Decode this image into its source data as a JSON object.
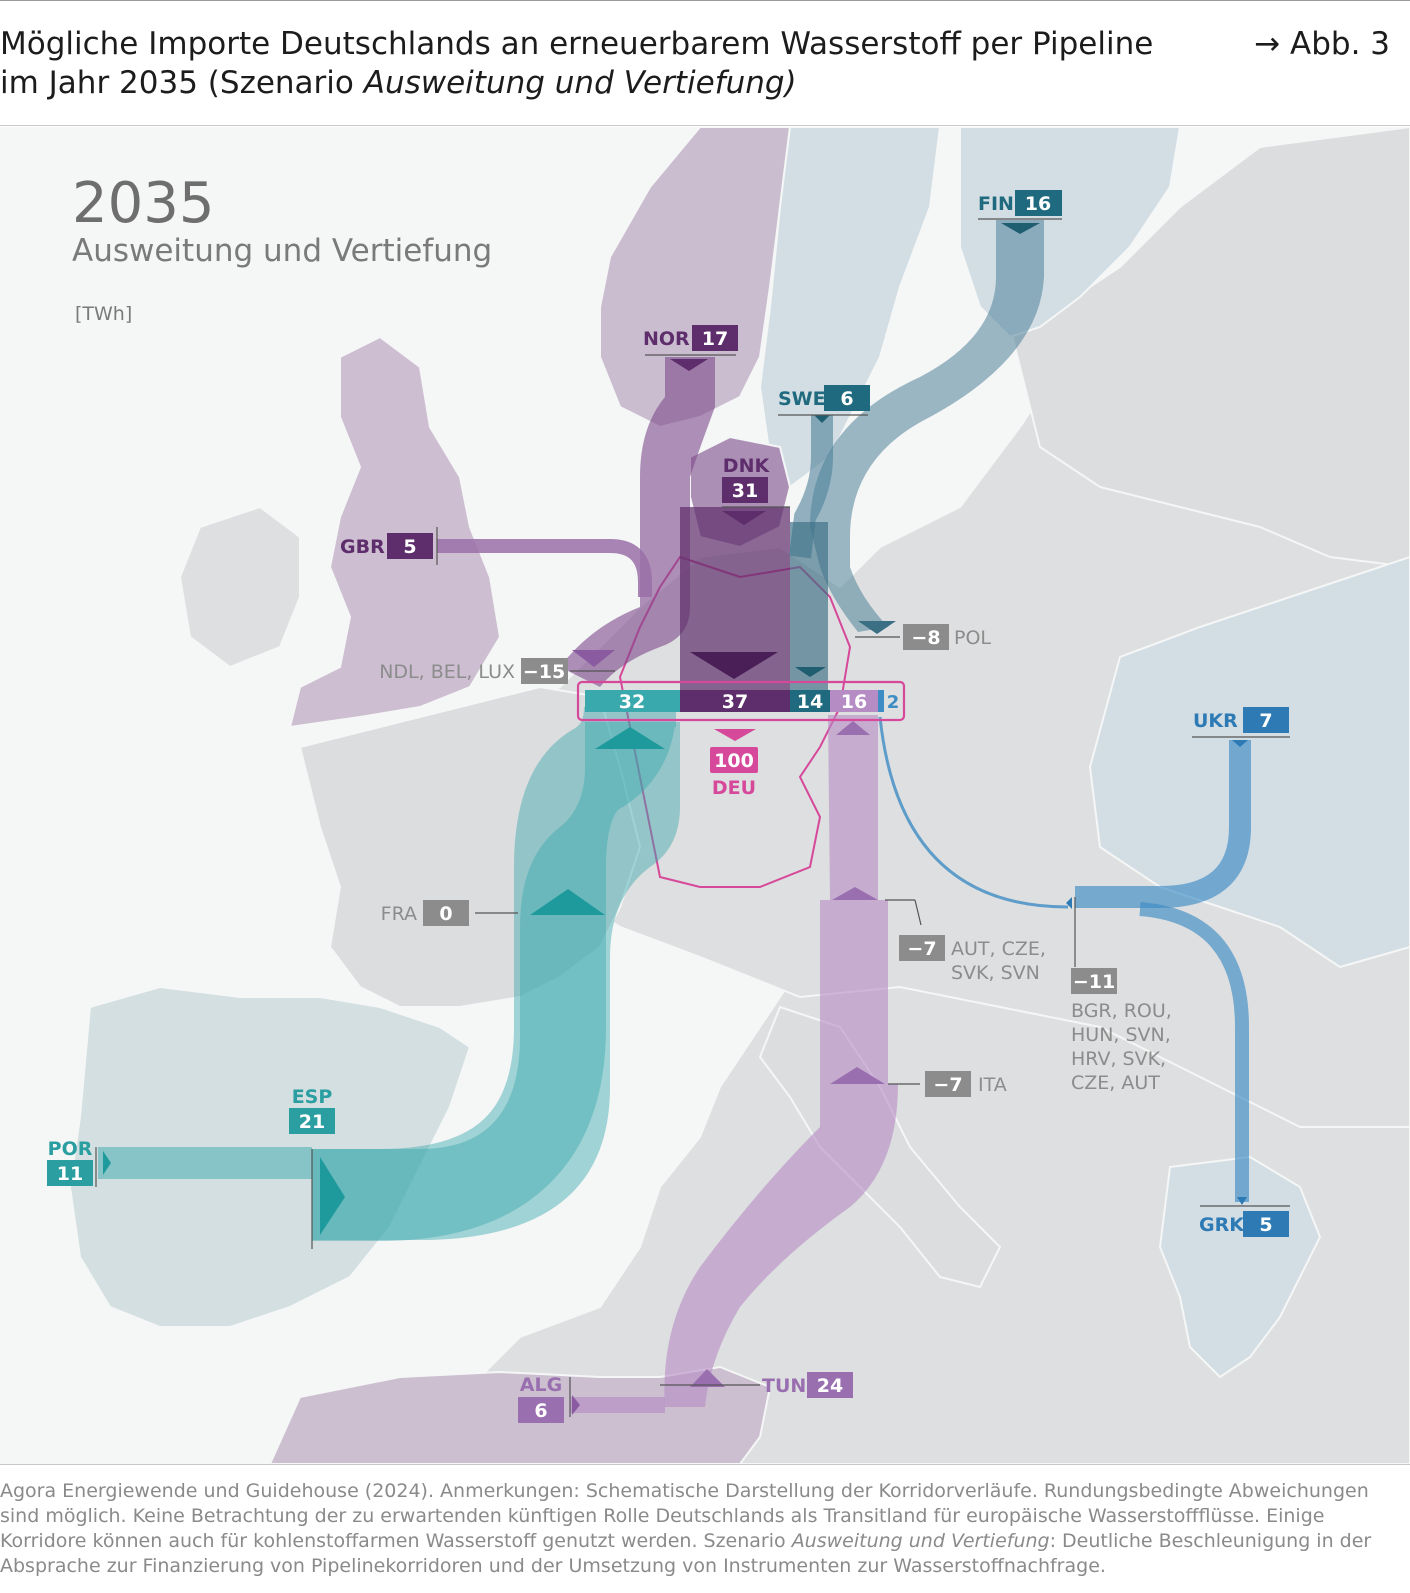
{
  "header": {
    "title_line1": "Mögliche Importe Deutschlands an erneuerbarem Wasserstoff per Pipeline",
    "title_line2_prefix": "im Jahr 2035 (Szenario ",
    "title_line2_italic": "Ausweitung und Vertiefung)",
    "figure_ref": "→ Abb. 3"
  },
  "map": {
    "year": "2035",
    "scenario": "Ausweitung und Vertiefung",
    "unit": "[TWh]",
    "colors": {
      "nordic_purple": "#5e2d6b",
      "nordic_blue": "#1f6a7e",
      "west_teal": "#3aa9ad",
      "south_lilac": "#a883b6",
      "east_blue": "#3d8cc4",
      "germany_pink": "#d6489a",
      "neutral_grey": "#8c8c8c"
    },
    "countries": [
      {
        "code": "NOR",
        "value": "17"
      },
      {
        "code": "FIN",
        "value": "16"
      },
      {
        "code": "SWE",
        "value": "6"
      },
      {
        "code": "DNK",
        "value": "31"
      },
      {
        "code": "GBR",
        "value": "5"
      },
      {
        "code": "NDL, BEL, LUX",
        "value": "−15"
      },
      {
        "code": "POL",
        "value": "−8"
      },
      {
        "code": "UKR",
        "value": "7"
      },
      {
        "code": "FRA",
        "value": "0"
      },
      {
        "code": "AUT, CZE,",
        "code2": "SVK, SVN",
        "value": "−7"
      },
      {
        "code": "BGR, ROU,",
        "code2": "HUN, SVN,",
        "code3": "HRV, SVK,",
        "code4": "CZE, AUT",
        "value": "−11"
      },
      {
        "code": "ITA",
        "value": "−7"
      },
      {
        "code": "ESP",
        "value": "21"
      },
      {
        "code": "POR",
        "value": "11"
      },
      {
        "code": "GRK",
        "value": "5"
      },
      {
        "code": "ALG",
        "value": "6"
      },
      {
        "code": "TUN",
        "value": "24"
      }
    ],
    "germany_bar": [
      {
        "label": "32",
        "color": "#3aa9ad"
      },
      {
        "label": "37",
        "color": "#5e2d6b"
      },
      {
        "label": "14",
        "color": "#1f6a7e"
      },
      {
        "label": "16",
        "color": "#b58cc4"
      },
      {
        "label": "2",
        "color": "#3d8cc4"
      }
    ],
    "germany": {
      "value": "100",
      "code": "DEU"
    }
  },
  "footer": {
    "line1": "Agora Energiewende und Guidehouse (2024). Anmerkungen: Schematische Darstellung der Korridorverläufe. Rundungsbedingte Abweichungen",
    "line2": "sind möglich. Keine Betrachtung der zu erwartenden künftigen Rolle Deutschlands als Transitland für europäische Wasserstoffflüsse. Einige",
    "line3": "Korridore können auch für kohlenstoffarmen Wasserstoff genutzt werden. Szenario ",
    "line3_italic": "Ausweitung und Vertiefung",
    "line3_tail": ": Deutliche Beschleunigung in der",
    "line4": "Absprache zur Finanzierung von Pipelinekorridoren und der Umsetzung von Instrumenten zur Wasserstoffnachfrage."
  }
}
